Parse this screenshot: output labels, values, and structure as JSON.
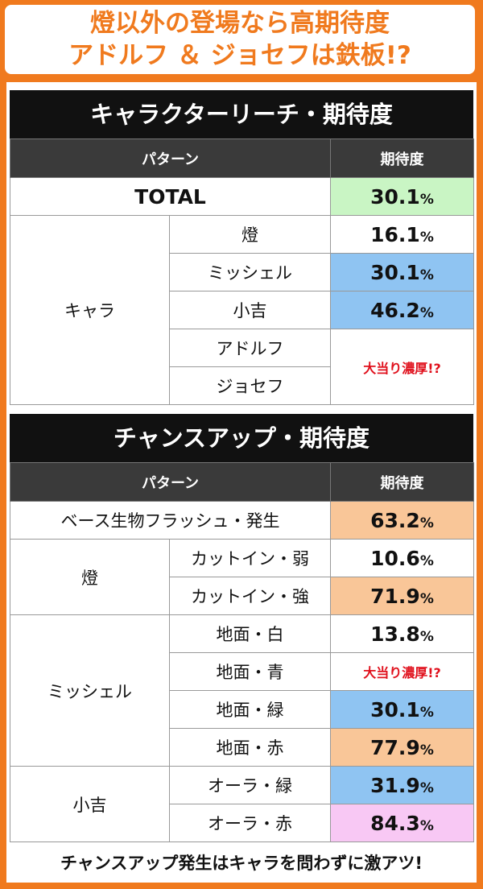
{
  "header": {
    "lines": [
      "燈以外の登場なら高期待度",
      "アドルフ ＆ ジョセフは鉄板!?"
    ]
  },
  "tables": [
    {
      "title": "キャラクターリーチ・期待度",
      "columns": [
        "パターン",
        "期待度"
      ],
      "sections": [
        {
          "label": "TOTAL",
          "value": "30.1%",
          "color": "#c9f5c4"
        },
        {
          "label": "キャラ",
          "items": [
            {
              "label": "燈",
              "value": "16.1%",
              "color": "#ffffff"
            },
            {
              "label": "ミッシェル",
              "value": "30.1%",
              "color": "#8fc4f2"
            },
            {
              "label": "小吉",
              "value": "46.2%",
              "color": "#8fc4f2"
            },
            {
              "labels": [
                "アドルフ",
                "ジョセフ"
              ],
              "value": "大当り濃厚!?",
              "color": "#ffffff"
            }
          ]
        }
      ]
    },
    {
      "title": "チャンスアップ・期待度",
      "columns": [
        "パターン",
        "期待度"
      ],
      "sections": [
        {
          "label": "ベース生物フラッシュ・発生",
          "value": "63.2%",
          "color": "#f9c698"
        },
        {
          "label": "燈",
          "items": [
            {
              "label": "カットイン・弱",
              "value": "10.6%",
              "color": "#ffffff"
            },
            {
              "label": "カットイン・強",
              "value": "71.9%",
              "color": "#f9c698"
            }
          ]
        },
        {
          "label": "ミッシェル",
          "items": [
            {
              "label": "地面・白",
              "value": "13.8%",
              "color": "#ffffff"
            },
            {
              "label": "地面・青",
              "value": "大当り濃厚!?",
              "color": "#ffffff"
            },
            {
              "label": "地面・緑",
              "value": "30.1%",
              "color": "#8fc4f2"
            },
            {
              "label": "地面・赤",
              "value": "77.9%",
              "color": "#f9c698"
            }
          ]
        },
        {
          "label": "小吉",
          "items": [
            {
              "label": "オーラ・緑",
              "value": "31.9%",
              "color": "#8fc4f2"
            },
            {
              "label": "オーラ・赤",
              "value": "84.3%",
              "color": "#f8c8f4"
            }
          ]
        }
      ]
    }
  ],
  "footer": "チャンスアップ発生はキャラを問わずに激アツ!"
}
